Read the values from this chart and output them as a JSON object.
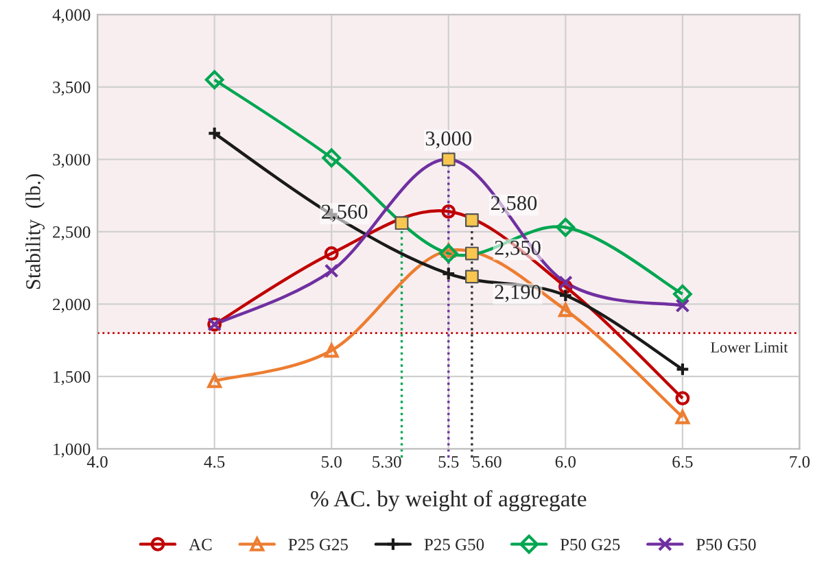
{
  "chart_data": {
    "type": "line",
    "xlabel": "% AC. by weight of aggregate",
    "ylabel": "Stability  (lb.)",
    "xlim": [
      4.0,
      7.0
    ],
    "xticks": [
      {
        "value": 4.0,
        "label": "4.0"
      },
      {
        "value": 4.5,
        "label": "4.5"
      },
      {
        "value": 5.0,
        "label": "5.0"
      },
      {
        "value": 5.5,
        "label": "5.5"
      },
      {
        "value": 6.0,
        "label": "6.0"
      },
      {
        "value": 6.5,
        "label": "6.5"
      },
      {
        "value": 7.0,
        "label": "7.0"
      }
    ],
    "ylim": [
      1000,
      4000
    ],
    "yticks": [
      {
        "value": 1000,
        "label": "1,000"
      },
      {
        "value": 1500,
        "label": "1,500"
      },
      {
        "value": 2000,
        "label": "2,000"
      },
      {
        "value": 2500,
        "label": "2,500"
      },
      {
        "value": 3000,
        "label": "3,000"
      },
      {
        "value": 3500,
        "label": "3,500"
      },
      {
        "value": 4000,
        "label": "4,000"
      }
    ],
    "grid": true,
    "legend": "bottom",
    "x": [
      4.5,
      5.0,
      5.5,
      6.0,
      6.5
    ],
    "series": [
      {
        "name": "AC",
        "color": "#c00000",
        "marker": "circle",
        "values": [
          1860,
          2350,
          2640,
          2120,
          1350
        ]
      },
      {
        "name": "P25 G25",
        "color": "#ed7d31",
        "marker": "triangle",
        "values": [
          1470,
          1680,
          2370,
          1960,
          1220
        ]
      },
      {
        "name": "P25 G50",
        "color": "#1a1a1a",
        "marker": "plus",
        "values": [
          3180,
          2620,
          2210,
          2060,
          1550
        ]
      },
      {
        "name": "P50 G25",
        "color": "#00a651",
        "marker": "diamond",
        "values": [
          3550,
          3010,
          2350,
          2530,
          2070
        ]
      },
      {
        "name": "P50 G50",
        "color": "#7030a0",
        "marker": "cross",
        "values": [
          1860,
          2230,
          3000,
          2150,
          1990
        ]
      },
      {
        "type": "scatter",
        "color": "#f9c74f",
        "marker": "square",
        "x": [
          5.3,
          5.5,
          5.6,
          5.6,
          5.6
        ],
        "values": [
          2560,
          3000,
          2580,
          2350,
          2190
        ],
        "value_labels": [
          "2,560",
          "3,000",
          "2,580",
          "2,350",
          "2,190"
        ]
      }
    ],
    "ref_lines": [
      {
        "axis": "y",
        "value": 1800,
        "label": "Lower Limit",
        "color": "#c00000",
        "line_style": "dotted"
      },
      {
        "axis": "x",
        "value": 5.3,
        "label": "5.30",
        "color": "#00a651",
        "line_style": "dotted"
      },
      {
        "axis": "x",
        "value": 5.5,
        "label": null,
        "color": "#7030a0",
        "line_style": "dotted"
      },
      {
        "axis": "x",
        "value": 5.6,
        "label": "5.60",
        "color": "#333333",
        "line_style": "dotted"
      }
    ],
    "bands": [
      {
        "axis": "y",
        "from": 1800,
        "to": 4000,
        "color": "#f8eef0"
      }
    ]
  }
}
